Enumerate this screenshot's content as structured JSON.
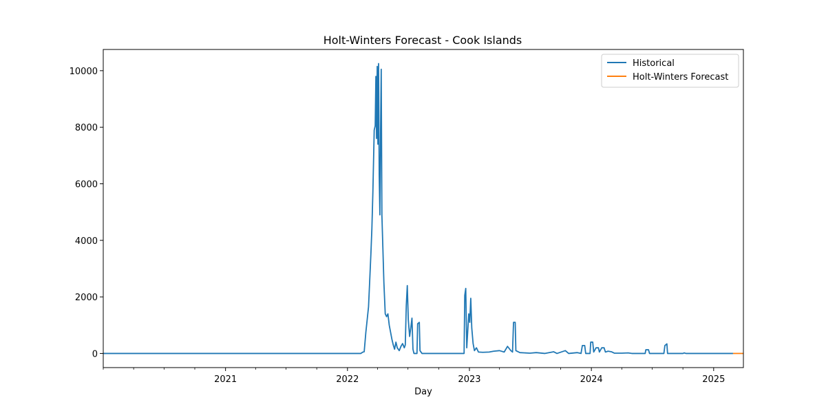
{
  "chart_data": {
    "type": "line",
    "title": "Holt-Winters Forecast - Cook Islands",
    "xlabel": "Day",
    "ylabel": "",
    "x_axis_type": "date",
    "xlim": [
      "2020-01-01",
      "2025-03-31"
    ],
    "ylim": [
      -500,
      10750
    ],
    "x_ticks": [
      "2021-01-01",
      "2022-01-01",
      "2023-01-01",
      "2024-01-01",
      "2025-01-01"
    ],
    "x_tick_labels": [
      "2021",
      "2022",
      "2023",
      "2024",
      "2025"
    ],
    "y_ticks": [
      0,
      2000,
      4000,
      6000,
      8000,
      10000
    ],
    "y_tick_labels": [
      "0",
      "2000",
      "4000",
      "6000",
      "8000",
      "10000"
    ],
    "grid": false,
    "legend_position": "top-right",
    "series": [
      {
        "name": "Historical",
        "color": "#1f77b4",
        "points": [
          [
            "2020-01-01",
            0
          ],
          [
            "2022-02-10",
            0
          ],
          [
            "2022-02-16",
            50
          ],
          [
            "2022-02-20",
            60
          ],
          [
            "2022-02-25",
            750
          ],
          [
            "2022-03-01",
            1200
          ],
          [
            "2022-03-05",
            1650
          ],
          [
            "2022-03-09",
            2700
          ],
          [
            "2022-03-12",
            3500
          ],
          [
            "2022-03-15",
            4400
          ],
          [
            "2022-03-18",
            5700
          ],
          [
            "2022-03-22",
            7900
          ],
          [
            "2022-03-25",
            8050
          ],
          [
            "2022-03-27",
            9800
          ],
          [
            "2022-03-29",
            7600
          ],
          [
            "2022-03-31",
            10150
          ],
          [
            "2022-04-02",
            7400
          ],
          [
            "2022-04-04",
            10250
          ],
          [
            "2022-04-06",
            6300
          ],
          [
            "2022-04-08",
            4900
          ],
          [
            "2022-04-10",
            7800
          ],
          [
            "2022-04-12",
            10050
          ],
          [
            "2022-04-14",
            4900
          ],
          [
            "2022-04-17",
            3700
          ],
          [
            "2022-04-20",
            2500
          ],
          [
            "2022-04-24",
            1400
          ],
          [
            "2022-04-28",
            1300
          ],
          [
            "2022-05-02",
            1400
          ],
          [
            "2022-05-06",
            1000
          ],
          [
            "2022-05-10",
            750
          ],
          [
            "2022-05-14",
            500
          ],
          [
            "2022-05-18",
            300
          ],
          [
            "2022-05-22",
            150
          ],
          [
            "2022-05-26",
            400
          ],
          [
            "2022-05-30",
            200
          ],
          [
            "2022-06-05",
            100
          ],
          [
            "2022-06-10",
            250
          ],
          [
            "2022-06-15",
            350
          ],
          [
            "2022-06-20",
            200
          ],
          [
            "2022-06-23",
            300
          ],
          [
            "2022-06-26",
            1700
          ],
          [
            "2022-06-29",
            2400
          ],
          [
            "2022-07-02",
            1200
          ],
          [
            "2022-07-06",
            600
          ],
          [
            "2022-07-10",
            950
          ],
          [
            "2022-07-13",
            1250
          ],
          [
            "2022-07-16",
            150
          ],
          [
            "2022-07-19",
            0
          ],
          [
            "2022-07-28",
            0
          ],
          [
            "2022-07-30",
            1050
          ],
          [
            "2022-08-04",
            1100
          ],
          [
            "2022-08-06",
            100
          ],
          [
            "2022-08-12",
            0
          ],
          [
            "2022-12-16",
            0
          ],
          [
            "2022-12-18",
            2050
          ],
          [
            "2022-12-21",
            2300
          ],
          [
            "2022-12-24",
            200
          ],
          [
            "2022-12-27",
            800
          ],
          [
            "2022-12-30",
            1400
          ],
          [
            "2023-01-02",
            1100
          ],
          [
            "2023-01-05",
            1950
          ],
          [
            "2023-01-08",
            900
          ],
          [
            "2023-01-12",
            350
          ],
          [
            "2023-01-16",
            100
          ],
          [
            "2023-01-22",
            200
          ],
          [
            "2023-01-28",
            50
          ],
          [
            "2023-02-10",
            40
          ],
          [
            "2023-03-01",
            50
          ],
          [
            "2023-03-15",
            80
          ],
          [
            "2023-04-01",
            100
          ],
          [
            "2023-04-15",
            50
          ],
          [
            "2023-04-25",
            250
          ],
          [
            "2023-05-05",
            100
          ],
          [
            "2023-05-10",
            50
          ],
          [
            "2023-05-13",
            1100
          ],
          [
            "2023-05-18",
            1100
          ],
          [
            "2023-05-20",
            100
          ],
          [
            "2023-06-01",
            30
          ],
          [
            "2023-07-01",
            10
          ],
          [
            "2023-07-20",
            30
          ],
          [
            "2023-08-15",
            0
          ],
          [
            "2023-09-10",
            60
          ],
          [
            "2023-09-20",
            0
          ],
          [
            "2023-10-15",
            100
          ],
          [
            "2023-10-25",
            0
          ],
          [
            "2023-11-20",
            30
          ],
          [
            "2023-12-01",
            0
          ],
          [
            "2023-12-05",
            280
          ],
          [
            "2023-12-12",
            280
          ],
          [
            "2023-12-15",
            0
          ],
          [
            "2023-12-28",
            0
          ],
          [
            "2023-12-30",
            400
          ],
          [
            "2024-01-05",
            400
          ],
          [
            "2024-01-08",
            50
          ],
          [
            "2024-01-15",
            200
          ],
          [
            "2024-01-22",
            200
          ],
          [
            "2024-01-25",
            50
          ],
          [
            "2024-02-01",
            200
          ],
          [
            "2024-02-08",
            200
          ],
          [
            "2024-02-12",
            50
          ],
          [
            "2024-02-20",
            80
          ],
          [
            "2024-03-01",
            60
          ],
          [
            "2024-03-10",
            10
          ],
          [
            "2024-04-01",
            10
          ],
          [
            "2024-04-20",
            20
          ],
          [
            "2024-05-01",
            0
          ],
          [
            "2024-06-10",
            0
          ],
          [
            "2024-06-12",
            130
          ],
          [
            "2024-06-20",
            130
          ],
          [
            "2024-06-23",
            0
          ],
          [
            "2024-08-05",
            0
          ],
          [
            "2024-08-08",
            280
          ],
          [
            "2024-08-14",
            340
          ],
          [
            "2024-08-16",
            0
          ],
          [
            "2024-10-01",
            0
          ],
          [
            "2024-10-05",
            20
          ],
          [
            "2024-10-10",
            0
          ],
          [
            "2025-02-28",
            0
          ]
        ]
      },
      {
        "name": "Holt-Winters Forecast",
        "color": "#ff7f0e",
        "points": [
          [
            "2025-02-28",
            0
          ],
          [
            "2025-03-31",
            0
          ]
        ]
      }
    ]
  }
}
